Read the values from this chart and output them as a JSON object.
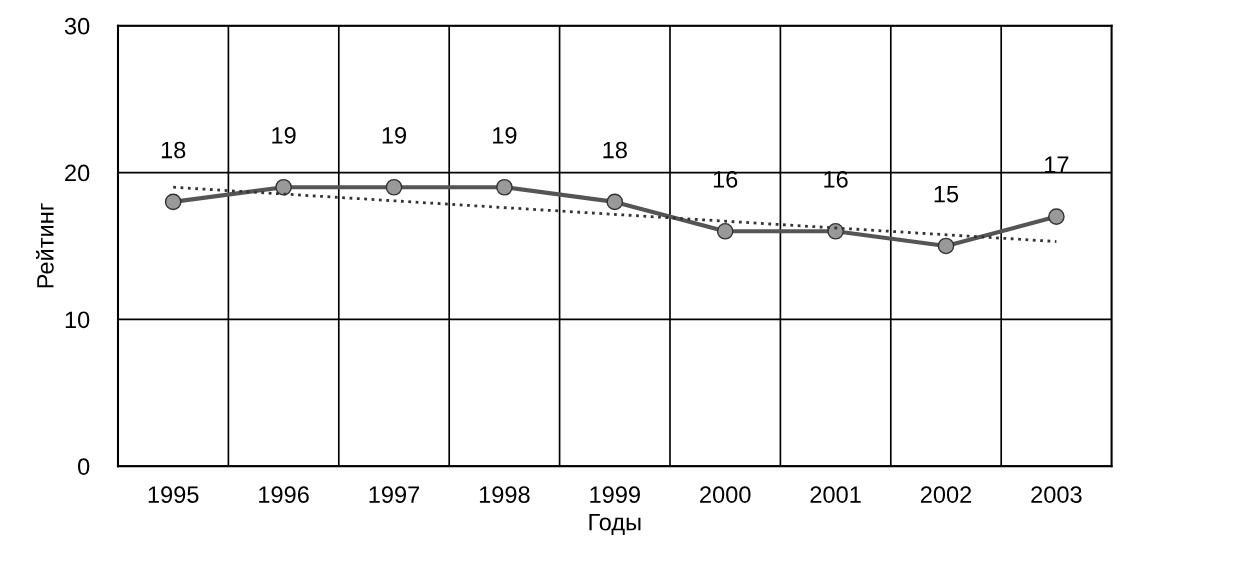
{
  "chart_data": {
    "type": "line",
    "xlabel": "Годы",
    "ylabel": "Рейтинг",
    "categories": [
      "1995",
      "1996",
      "1997",
      "1998",
      "1999",
      "2000",
      "2001",
      "2002",
      "2003"
    ],
    "series": [
      {
        "color": "#555555",
        "values": [
          18,
          19,
          19,
          19,
          18,
          16,
          16,
          15,
          17
        ],
        "value_labels": [
          "18",
          "19",
          "19",
          "19",
          "18",
          "16",
          "16",
          "15",
          "17"
        ],
        "marker": "circle",
        "line_style": "solid"
      },
      {
        "type": "line",
        "color": "#333333",
        "values": [
          19.0,
          null,
          null,
          null,
          null,
          null,
          null,
          null,
          15.3
        ],
        "marker": "none",
        "line_style": "dotted"
      }
    ],
    "ylim": [
      0,
      30
    ],
    "yticks": [
      0,
      10,
      20,
      30
    ],
    "grid": true,
    "legend": false
  }
}
